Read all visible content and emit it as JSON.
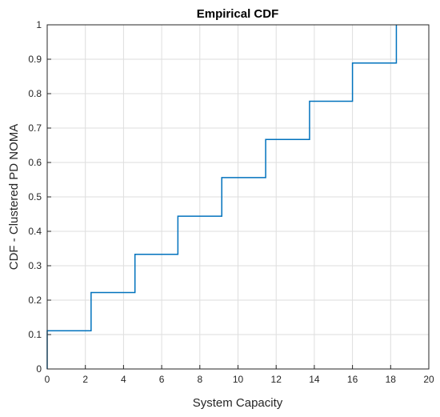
{
  "chart_data": {
    "type": "line",
    "title": "Empirical CDF",
    "xlabel": "System Capacity",
    "ylabel": "CDF - Clustered PD NOMA",
    "xlim": [
      0,
      20
    ],
    "ylim": [
      0,
      1
    ],
    "grid": true,
    "x_ticks": [
      "0",
      "2",
      "4",
      "6",
      "8",
      "10",
      "12",
      "14",
      "16",
      "18",
      "20"
    ],
    "y_ticks": [
      "0",
      "0.1",
      "0.2",
      "0.3",
      "0.4",
      "0.5",
      "0.6",
      "0.7",
      "0.8",
      "0.9",
      "1"
    ],
    "series": [
      {
        "step": "post",
        "color": "#0072BD",
        "x": [
          0,
          0,
          2.3,
          4.6,
          6.85,
          9.15,
          11.45,
          13.75,
          16.0,
          18.3
        ],
        "y": [
          0,
          0.111,
          0.222,
          0.333,
          0.444,
          0.556,
          0.667,
          0.778,
          0.889,
          1.0
        ]
      }
    ]
  }
}
